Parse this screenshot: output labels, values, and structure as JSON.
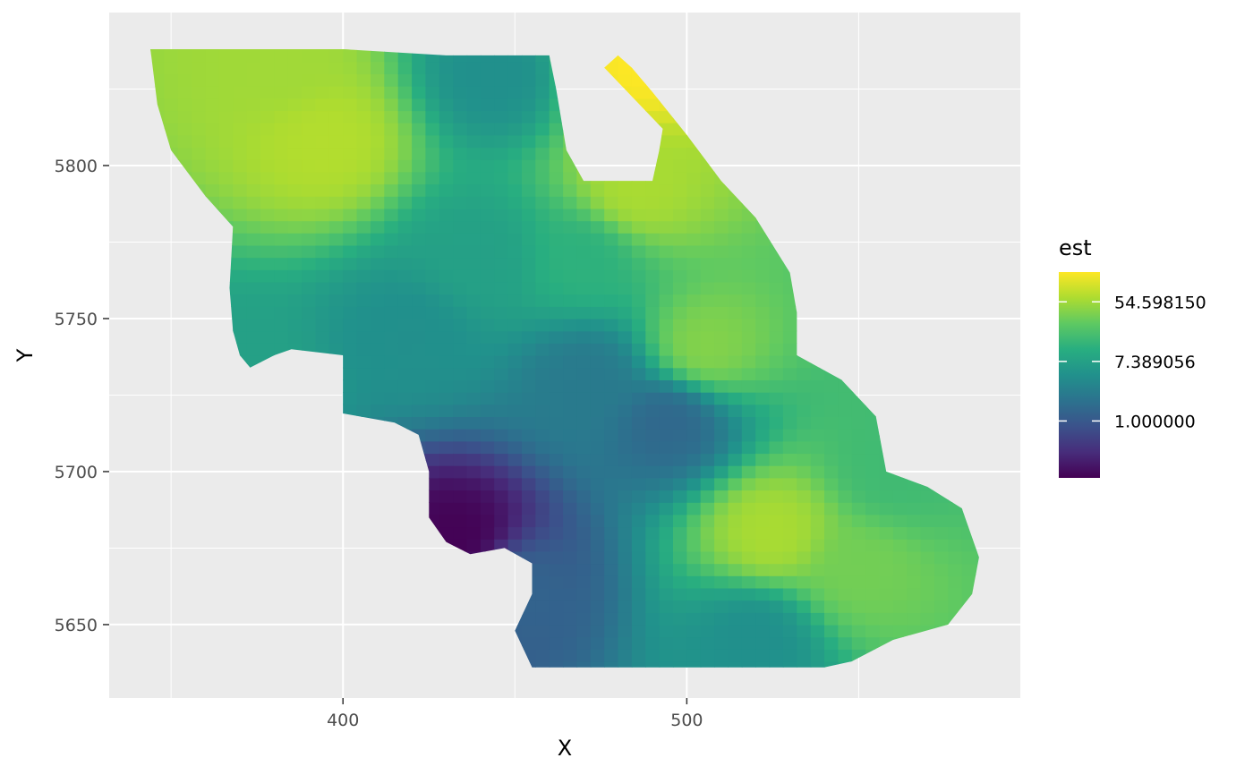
{
  "chart_data": {
    "type": "heatmap",
    "xlabel": "X",
    "ylabel": "Y",
    "xlim": [
      332,
      597
    ],
    "ylim": [
      5626,
      5850
    ],
    "x_ticks": [
      400,
      500
    ],
    "x_tick_labels": [
      "400",
      "500"
    ],
    "y_ticks": [
      5650,
      5700,
      5750,
      5800
    ],
    "y_tick_labels": [
      "5650",
      "5700",
      "5750",
      "5800"
    ],
    "grid": true,
    "panel_background": "#ebebeb",
    "legend": {
      "title": "est",
      "placement": "right",
      "scale": "log",
      "colormap": "viridis",
      "breaks": [
        1.0,
        7.389056,
        54.59815
      ],
      "break_labels": [
        "1.000000",
        "7.389056",
        "54.598150"
      ],
      "range": [
        0.148,
        148.4
      ]
    },
    "cell_size": [
      4,
      4
    ],
    "region_outline": [
      [
        344,
        5838
      ],
      [
        400,
        5838
      ],
      [
        430,
        5836
      ],
      [
        460,
        5836
      ],
      [
        462,
        5825
      ],
      [
        465,
        5805
      ],
      [
        470,
        5795
      ],
      [
        490,
        5795
      ],
      [
        492,
        5805
      ],
      [
        493,
        5812
      ],
      [
        476,
        5832
      ],
      [
        480,
        5836
      ],
      [
        484,
        5832
      ],
      [
        490,
        5824
      ],
      [
        500,
        5810
      ],
      [
        510,
        5795
      ],
      [
        520,
        5783
      ],
      [
        530,
        5765
      ],
      [
        532,
        5752
      ],
      [
        532,
        5738
      ],
      [
        545,
        5730
      ],
      [
        555,
        5718
      ],
      [
        558,
        5700
      ],
      [
        570,
        5695
      ],
      [
        580,
        5688
      ],
      [
        585,
        5672
      ],
      [
        583,
        5660
      ],
      [
        576,
        5650
      ],
      [
        560,
        5645
      ],
      [
        548,
        5638
      ],
      [
        540,
        5636
      ],
      [
        455,
        5636
      ],
      [
        450,
        5648
      ],
      [
        455,
        5660
      ],
      [
        455,
        5670
      ],
      [
        447,
        5675
      ],
      [
        437,
        5673
      ],
      [
        430,
        5677
      ],
      [
        425,
        5685
      ],
      [
        425,
        5700
      ],
      [
        422,
        5712
      ],
      [
        415,
        5716
      ],
      [
        400,
        5719
      ],
      [
        400,
        5738
      ],
      [
        385,
        5740
      ],
      [
        380,
        5738
      ],
      [
        373,
        5734
      ],
      [
        370,
        5738
      ],
      [
        368,
        5746
      ],
      [
        367,
        5760
      ],
      [
        368,
        5780
      ],
      [
        360,
        5790
      ],
      [
        350,
        5805
      ],
      [
        346,
        5820
      ],
      [
        344,
        5838
      ]
    ],
    "log_est_hotspots": [
      {
        "x": 485,
        "y": 5834,
        "log_est": 5.0
      },
      {
        "x": 395,
        "y": 5808,
        "log_est": 4.2
      },
      {
        "x": 382,
        "y": 5833,
        "log_est": 4.0
      },
      {
        "x": 525,
        "y": 5680,
        "log_est": 4.1
      },
      {
        "x": 485,
        "y": 5792,
        "log_est": 4.1
      },
      {
        "x": 505,
        "y": 5740,
        "log_est": 3.7
      },
      {
        "x": 550,
        "y": 5668,
        "log_est": 3.5
      },
      {
        "x": 434,
        "y": 5678,
        "log_est": -1.9
      },
      {
        "x": 450,
        "y": 5662,
        "log_est": 0.3
      },
      {
        "x": 495,
        "y": 5717,
        "log_est": 0.4
      },
      {
        "x": 472,
        "y": 5730,
        "log_est": 0.9
      },
      {
        "x": 520,
        "y": 5646,
        "log_est": 1.5
      },
      {
        "x": 440,
        "y": 5770,
        "log_est": 2.0
      },
      {
        "x": 445,
        "y": 5830,
        "log_est": 1.5
      },
      {
        "x": 420,
        "y": 5745,
        "log_est": 1.5
      },
      {
        "x": 370,
        "y": 5730,
        "log_est": 2.0
      },
      {
        "x": 470,
        "y": 5770,
        "log_est": 2.5
      },
      {
        "x": 560,
        "y": 5700,
        "log_est": 2.8
      }
    ]
  }
}
